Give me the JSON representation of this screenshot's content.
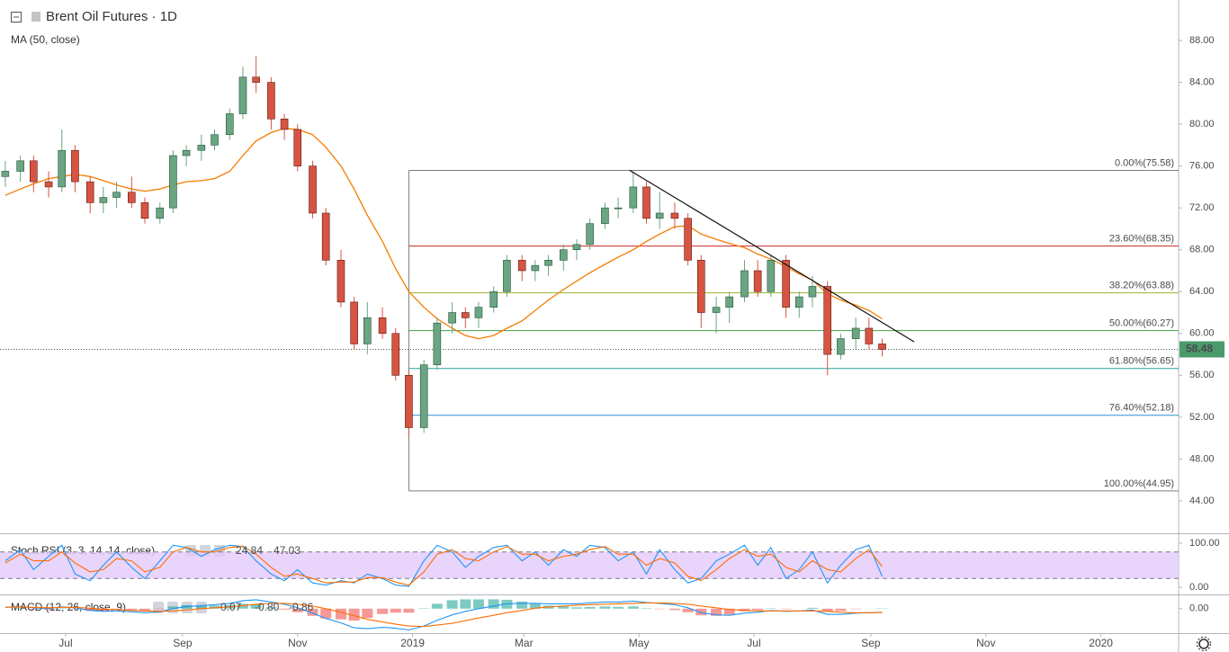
{
  "chart_data": [
    {
      "type": "candlestick",
      "title": "Brent Oil Futures · 1D",
      "x": [
        -2,
        6,
        13,
        21,
        28,
        35,
        43,
        50,
        57,
        65,
        72,
        80,
        87,
        94,
        102,
        109,
        117,
        124,
        131,
        139,
        146,
        153,
        161,
        168,
        176,
        183,
        190,
        198,
        205,
        212,
        220,
        227,
        235,
        242,
        249,
        257,
        264,
        272,
        279,
        286,
        294,
        301,
        308,
        316,
        323,
        331,
        338,
        345,
        353,
        360,
        367,
        375,
        382,
        390,
        397,
        404,
        412,
        419,
        426,
        434,
        441,
        449,
        456,
        463
      ],
      "ohlc": [
        [
          75,
          76.5,
          74,
          75.5
        ],
        [
          75.5,
          77,
          74.5,
          76.5
        ],
        [
          76.5,
          77,
          73.5,
          74.5
        ],
        [
          74.5,
          75.5,
          73,
          74
        ],
        [
          74,
          79.5,
          73.5,
          77.5
        ],
        [
          77.5,
          78,
          73.5,
          74.5
        ],
        [
          74.5,
          75,
          71.5,
          72.5
        ],
        [
          72.5,
          74,
          71.5,
          73
        ],
        [
          73,
          74.5,
          72,
          73.5
        ],
        [
          73.5,
          75,
          72,
          72.5
        ],
        [
          72.5,
          73,
          70.5,
          71
        ],
        [
          71,
          72.5,
          70.5,
          72
        ],
        [
          72,
          77.5,
          71.5,
          77
        ],
        [
          77,
          78,
          76,
          77.5
        ],
        [
          77.5,
          79,
          76.5,
          78
        ],
        [
          78,
          79.5,
          77.5,
          79
        ],
        [
          79,
          81.5,
          78.5,
          81
        ],
        [
          81,
          85.5,
          80.5,
          84.5
        ],
        [
          84.5,
          86.5,
          83,
          84
        ],
        [
          84,
          84.5,
          79.5,
          80.5
        ],
        [
          80.5,
          81,
          78.5,
          79.5
        ],
        [
          79.5,
          80,
          75.5,
          76
        ],
        [
          76,
          76.5,
          71,
          71.5
        ],
        [
          71.5,
          72,
          66.5,
          67
        ],
        [
          67,
          68,
          62.5,
          63
        ],
        [
          63,
          63.5,
          58.5,
          59
        ],
        [
          59,
          63,
          58,
          61.5
        ],
        [
          61.5,
          62.5,
          59.5,
          60
        ],
        [
          60,
          60.5,
          55.5,
          56
        ],
        [
          56,
          56.5,
          50,
          51
        ],
        [
          51,
          57.5,
          50.5,
          57
        ],
        [
          57,
          61.5,
          56.5,
          61
        ],
        [
          61,
          63,
          60,
          62
        ],
        [
          62,
          62.5,
          60.5,
          61.5
        ],
        [
          61.5,
          63,
          60.5,
          62.5
        ],
        [
          62.5,
          64.5,
          62,
          64
        ],
        [
          64,
          67.5,
          63.5,
          67
        ],
        [
          67,
          67.5,
          65,
          66
        ],
        [
          66,
          67,
          65,
          66.5
        ],
        [
          66.5,
          67.5,
          65.5,
          67
        ],
        [
          67,
          68.5,
          66,
          68
        ],
        [
          68,
          69,
          67,
          68.5
        ],
        [
          68.5,
          71,
          68,
          70.5
        ],
        [
          70.5,
          72.5,
          70,
          72
        ],
        [
          72,
          73,
          71,
          72
        ],
        [
          72,
          75.5,
          71.5,
          74
        ],
        [
          74,
          74.5,
          70.5,
          71
        ],
        [
          71,
          73.5,
          70,
          71.5
        ],
        [
          71.5,
          72.5,
          70,
          71
        ],
        [
          71,
          71.5,
          66.5,
          67
        ],
        [
          67,
          67.5,
          60.5,
          62
        ],
        [
          62,
          63.5,
          60,
          62.5
        ],
        [
          62.5,
          64,
          61,
          63.5
        ],
        [
          63.5,
          67,
          63,
          66
        ],
        [
          66,
          67,
          63.5,
          64
        ],
        [
          64,
          67.5,
          63.5,
          67
        ],
        [
          67,
          67.5,
          61.5,
          62.5
        ],
        [
          62.5,
          64,
          61.5,
          63.5
        ],
        [
          63.5,
          65.5,
          62.5,
          64.5
        ],
        [
          64.5,
          65,
          56,
          58
        ],
        [
          58,
          60,
          57.5,
          59.5
        ],
        [
          59.5,
          61.5,
          58.5,
          60.5
        ],
        [
          60.5,
          61.5,
          58.5,
          59
        ],
        [
          59,
          59.5,
          57.8,
          58.48
        ]
      ],
      "up_color": "#6ba583",
      "down_color": "#d75442",
      "overlays": [
        {
          "name": "MA (50, close)",
          "color": "#f57c00",
          "values": [
            73.2,
            73.8,
            74.3,
            74.8,
            75,
            75.2,
            75,
            74.6,
            74.2,
            73.8,
            73.6,
            73.8,
            74.2,
            74.5,
            74.6,
            74.8,
            75.5,
            77,
            78.4,
            79.2,
            79.6,
            79.5,
            79,
            77.8,
            76,
            73.8,
            71.3,
            68.8,
            66.2,
            64,
            62.5,
            61.4,
            60.5,
            59.8,
            59.5,
            59.8,
            60.5,
            61.2,
            62.2,
            63.2,
            64.2,
            65,
            65.8,
            66.6,
            67.3,
            68,
            68.8,
            69.5,
            70.2,
            70.3,
            69.5,
            69,
            68.6,
            68.2,
            67.6,
            67.1,
            66.4,
            65.7,
            65.1,
            63.8,
            63.2,
            62.7,
            62.2,
            61.4
          ]
        }
      ],
      "xlim": [
        -4.8,
        620.2
      ],
      "xticks": [
        {
          "value": 30,
          "label": "Jul"
        },
        {
          "value": 92,
          "label": "Sep"
        },
        {
          "value": 153,
          "label": "Nov"
        },
        {
          "value": 214,
          "label": "2019"
        },
        {
          "value": 273,
          "label": "Mar"
        },
        {
          "value": 334,
          "label": "May"
        },
        {
          "value": 395,
          "label": "Jul"
        },
        {
          "value": 457,
          "label": "Sep"
        },
        {
          "value": 518,
          "label": "Nov"
        },
        {
          "value": 579,
          "label": "2020"
        }
      ],
      "ylim": [
        40.9,
        91.87
      ],
      "yticks": [
        {
          "value": 44,
          "label": "44.00"
        },
        {
          "value": 48,
          "label": "48.00"
        },
        {
          "value": 52,
          "label": "52.00"
        },
        {
          "value": 56,
          "label": "56.00"
        },
        {
          "value": 60,
          "label": "60.00"
        },
        {
          "value": 64,
          "label": "64.00"
        },
        {
          "value": 68,
          "label": "68.00"
        },
        {
          "value": 72,
          "label": "72.00"
        },
        {
          "value": 76,
          "label": "76.00"
        },
        {
          "value": 80,
          "label": "80.00"
        },
        {
          "value": 84,
          "label": "84.00"
        },
        {
          "value": 88,
          "label": "88.00"
        }
      ],
      "fib_levels": [
        {
          "value": 75.58,
          "label": "0.00%(75.58)",
          "color": "#787b86"
        },
        {
          "value": 68.35,
          "label": "23.60%(68.35)",
          "color": "#c62828"
        },
        {
          "value": 63.88,
          "label": "38.20%(63.88)",
          "color": "#9cb32a"
        },
        {
          "value": 60.27,
          "label": "50.00%(60.27)",
          "color": "#43a047"
        },
        {
          "value": 56.65,
          "label": "61.80%(56.65)",
          "color": "#26a69a"
        },
        {
          "value": 52.18,
          "label": "76.40%(52.18)",
          "color": "#2f8fd6"
        },
        {
          "value": 44.95,
          "label": "100.00%(44.95)",
          "color": "#787b86"
        }
      ],
      "trendline": {
        "x": [
          329,
          480
        ],
        "y": [
          75.6,
          59.2
        ],
        "color": "#111111"
      },
      "last_price": 58.48,
      "last_price_color": "#4b9a6c"
    },
    {
      "type": "oscillator",
      "title": "Stoch RSI (3, 3, 14, 14, close)",
      "series": [
        {
          "color": "#2196f3",
          "values": [
            60,
            85,
            40,
            70,
            95,
            30,
            15,
            50,
            80,
            45,
            20,
            60,
            95,
            90,
            70,
            85,
            95,
            92,
            60,
            30,
            15,
            40,
            10,
            5,
            15,
            10,
            30,
            20,
            5,
            2,
            60,
            95,
            80,
            45,
            70,
            90,
            95,
            60,
            80,
            50,
            85,
            70,
            95,
            90,
            60,
            80,
            30,
            85,
            40,
            10,
            20,
            60,
            75,
            95,
            50,
            90,
            20,
            40,
            80,
            10,
            50,
            85,
            95,
            24.84
          ]
        },
        {
          "color": "#ff6d00",
          "values": [
            55,
            75,
            60,
            60,
            80,
            55,
            35,
            40,
            65,
            60,
            35,
            45,
            80,
            90,
            80,
            80,
            90,
            93,
            75,
            45,
            25,
            30,
            20,
            10,
            12,
            12,
            22,
            22,
            12,
            5,
            35,
            75,
            85,
            65,
            60,
            80,
            92,
            75,
            75,
            60,
            70,
            75,
            85,
            92,
            75,
            75,
            50,
            65,
            55,
            25,
            15,
            40,
            65,
            85,
            70,
            75,
            45,
            35,
            60,
            40,
            35,
            65,
            85,
            47.03
          ]
        }
      ],
      "band": [
        20,
        80
      ],
      "band_color": "#e4c9fb",
      "ylim": [
        -14,
        120
      ],
      "yticks": [
        {
          "value": 100,
          "label": "100.00"
        },
        {
          "value": 0,
          "label": "0.00"
        }
      ]
    },
    {
      "type": "macd",
      "title": "MACD (12, 26, close, 9)",
      "histogram": {
        "up_color": "#26a69a",
        "down_color": "#ef5350",
        "values": [
          0,
          0.1,
          -0.1,
          -0.2,
          0.1,
          -0.1,
          -0.5,
          -0.5,
          -0.3,
          -0.3,
          -0.4,
          -0.1,
          0.5,
          0.8,
          0.7,
          0.7,
          0.8,
          1.1,
          1,
          0.3,
          -0.2,
          -0.8,
          -1.6,
          -2.2,
          -2.4,
          -2.7,
          -2.1,
          -1.2,
          -0.9,
          -0.9,
          0.1,
          1.1,
          1.9,
          2.1,
          2.1,
          2.1,
          2,
          1.6,
          1.1,
          0.7,
          0.5,
          0.3,
          0.4,
          0.5,
          0.4,
          0.5,
          0.1,
          -0.1,
          -0.3,
          -0.8,
          -1.5,
          -1.6,
          -1.3,
          -0.6,
          -0.3,
          0.1,
          -0.1,
          0,
          0.2,
          -0.7,
          -0.5,
          -0.1,
          0,
          0.07
        ]
      },
      "series": [
        {
          "color": "#2196f3",
          "values": [
            0.3,
            0.5,
            0.2,
            0,
            0.4,
            0.2,
            -0.4,
            -0.6,
            -0.5,
            -0.7,
            -0.9,
            -0.7,
            0,
            0.5,
            0.7,
            0.9,
            1.2,
            1.8,
            2,
            1.5,
            1,
            0.2,
            -1,
            -2.2,
            -3.2,
            -4.3,
            -4.5,
            -4.2,
            -4.4,
            -4.8,
            -3.9,
            -2.6,
            -1.4,
            -0.6,
            0,
            0.6,
            1.1,
            1.2,
            1.2,
            1.1,
            1.1,
            1.1,
            1.3,
            1.5,
            1.5,
            1.7,
            1.4,
            1.2,
            0.9,
            0.2,
            -0.9,
            -1.4,
            -1.5,
            -1,
            -0.8,
            -0.4,
            -0.6,
            -0.5,
            -0.3,
            -1.3,
            -1.3,
            -1,
            -0.9,
            -0.8
          ]
        },
        {
          "color": "#ff6d00",
          "values": [
            0.3,
            0.4,
            0.3,
            0.2,
            0.3,
            0.3,
            0.1,
            -0.1,
            -0.2,
            -0.4,
            -0.5,
            -0.6,
            -0.5,
            -0.3,
            0,
            0.2,
            0.4,
            0.7,
            1,
            1.2,
            1.2,
            1,
            0.6,
            0,
            -0.8,
            -1.6,
            -2.4,
            -3,
            -3.5,
            -3.9,
            -4,
            -3.7,
            -3.3,
            -2.7,
            -2.1,
            -1.5,
            -0.9,
            -0.4,
            0.1,
            0.4,
            0.6,
            0.8,
            0.9,
            1,
            1.1,
            1.2,
            1.3,
            1.3,
            1.2,
            1,
            0.6,
            0.2,
            -0.2,
            -0.4,
            -0.5,
            -0.5,
            -0.5,
            -0.5,
            -0.5,
            -0.6,
            -0.8,
            -0.9,
            -0.9,
            -0.86
          ]
        }
      ],
      "legend_values": [
        0.07,
        {
          "value": -0.8,
          "label": "-0.80"
        },
        -0.86
      ],
      "ylim": [
        -5.5,
        3
      ],
      "yticks": [
        {
          "value": 0,
          "label": "0.00"
        }
      ]
    }
  ]
}
